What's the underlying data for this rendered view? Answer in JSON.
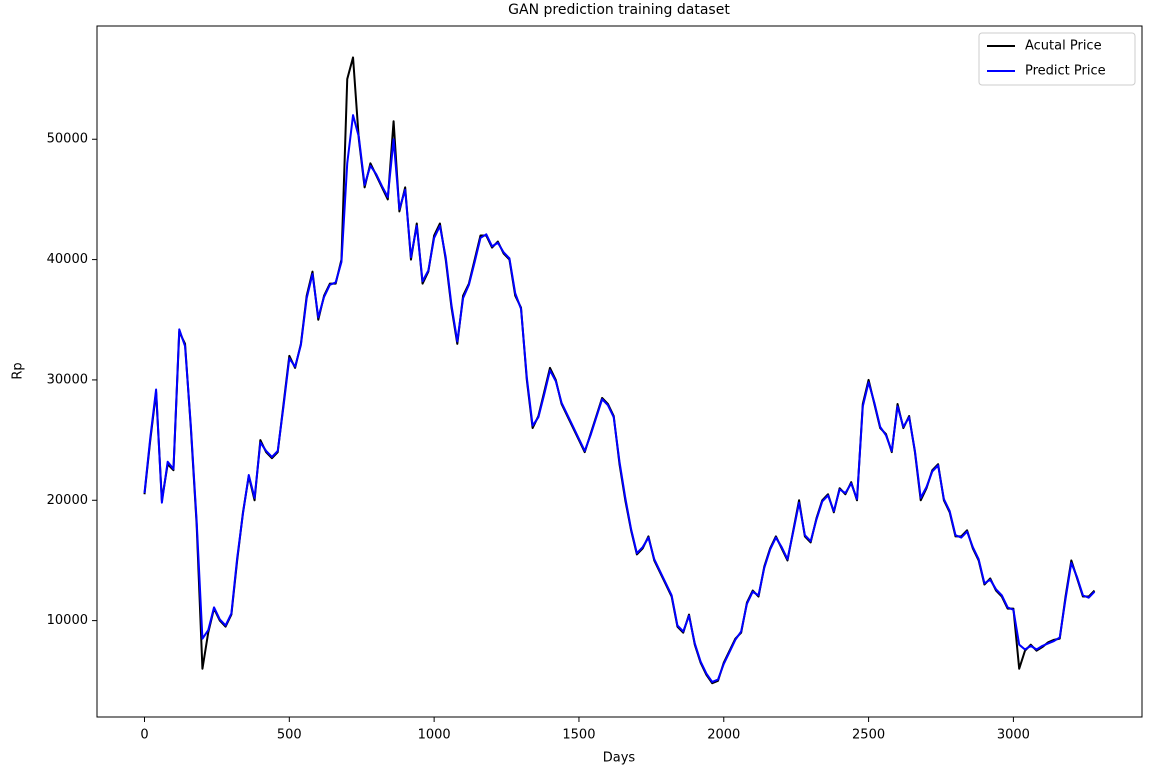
{
  "chart_data": {
    "type": "line",
    "title": "GAN prediction training dataset",
    "xlabel": "Days",
    "ylabel": "Rp",
    "x": [
      0,
      20,
      40,
      60,
      80,
      100,
      120,
      140,
      160,
      180,
      200,
      220,
      240,
      260,
      280,
      300,
      320,
      340,
      360,
      380,
      400,
      420,
      440,
      460,
      480,
      500,
      520,
      540,
      560,
      580,
      600,
      620,
      640,
      660,
      680,
      700,
      720,
      740,
      760,
      780,
      800,
      820,
      840,
      860,
      880,
      900,
      920,
      940,
      960,
      980,
      1000,
      1020,
      1040,
      1060,
      1080,
      1100,
      1120,
      1140,
      1160,
      1180,
      1200,
      1220,
      1240,
      1260,
      1280,
      1300,
      1320,
      1340,
      1360,
      1380,
      1400,
      1420,
      1440,
      1460,
      1480,
      1500,
      1520,
      1540,
      1560,
      1580,
      1600,
      1620,
      1640,
      1660,
      1680,
      1700,
      1720,
      1740,
      1760,
      1780,
      1800,
      1820,
      1840,
      1860,
      1880,
      1900,
      1920,
      1940,
      1960,
      1980,
      2000,
      2020,
      2040,
      2060,
      2080,
      2100,
      2120,
      2140,
      2160,
      2180,
      2200,
      2220,
      2240,
      2260,
      2280,
      2300,
      2320,
      2340,
      2360,
      2380,
      2400,
      2420,
      2440,
      2460,
      2480,
      2500,
      2520,
      2540,
      2560,
      2580,
      2600,
      2620,
      2640,
      2660,
      2680,
      2700,
      2720,
      2740,
      2760,
      2780,
      2800,
      2820,
      2840,
      2860,
      2880,
      2900,
      2920,
      2940,
      2960,
      2980,
      3000,
      3020,
      3040,
      3060,
      3080,
      3100,
      3120,
      3140,
      3160,
      3180,
      3200,
      3220,
      3240,
      3260,
      3280
    ],
    "series": [
      {
        "name": "Acutal Price",
        "color": "#000000",
        "values": [
          20500,
          25000,
          29000,
          20000,
          23000,
          22500,
          34000,
          33000,
          26000,
          18000,
          6000,
          9000,
          11000,
          10000,
          9500,
          10500,
          15000,
          19000,
          22000,
          20000,
          25000,
          24000,
          23500,
          24000,
          28000,
          32000,
          31000,
          33000,
          37000,
          39000,
          35000,
          37000,
          38000,
          38000,
          40000,
          55000,
          56800,
          50000,
          46000,
          48000,
          47000,
          46000,
          45000,
          51500,
          44000,
          46000,
          40000,
          43000,
          38000,
          39000,
          42000,
          43000,
          40000,
          36000,
          33000,
          37000,
          38000,
          40000,
          42000,
          42000,
          41000,
          41500,
          40500,
          40000,
          37000,
          36000,
          30000,
          26000,
          27000,
          29000,
          31000,
          30000,
          28000,
          27000,
          26000,
          25000,
          24000,
          25500,
          27000,
          28500,
          28000,
          27000,
          23000,
          20000,
          17500,
          15500,
          16000,
          17000,
          15000,
          14000,
          13000,
          12000,
          9500,
          9000,
          10500,
          8000,
          6500,
          5500,
          4800,
          5000,
          6500,
          7500,
          8500,
          9000,
          11500,
          12500,
          12000,
          14500,
          16000,
          17000,
          16000,
          15000,
          17500,
          20000,
          17000,
          16500,
          18500,
          20000,
          20500,
          19000,
          21000,
          20500,
          21500,
          20000,
          28000,
          30000,
          28000,
          26000,
          25500,
          24000,
          28000,
          26000,
          27000,
          24000,
          20000,
          21000,
          22500,
          23000,
          20000,
          19000,
          17000,
          17000,
          17500,
          16000,
          15000,
          13000,
          13500,
          12500,
          12000,
          11000,
          11000,
          6000,
          7500,
          8000,
          7500,
          7800,
          8200,
          8400,
          8500,
          12000,
          15000,
          13500,
          12000,
          12000,
          12500
        ]
      },
      {
        "name": "Predict Price",
        "color": "#0000ff",
        "values": [
          20600,
          25200,
          29200,
          19800,
          23200,
          22600,
          34200,
          32800,
          26200,
          18300,
          8500,
          9200,
          11100,
          10100,
          9600,
          10600,
          15200,
          18900,
          22100,
          20200,
          24800,
          24100,
          23600,
          24100,
          27800,
          31800,
          31100,
          32900,
          36800,
          38800,
          35200,
          36900,
          37900,
          38100,
          39800,
          48000,
          52000,
          50200,
          46200,
          47800,
          47100,
          46100,
          45200,
          50000,
          44200,
          45800,
          40200,
          42800,
          38200,
          39100,
          41800,
          42800,
          40200,
          36200,
          33200,
          36800,
          37900,
          39800,
          41800,
          42100,
          41100,
          41400,
          40600,
          40100,
          37200,
          35900,
          30200,
          26200,
          26900,
          28800,
          30800,
          29900,
          28100,
          27100,
          26100,
          25100,
          24100,
          25400,
          26900,
          28400,
          27900,
          26900,
          23200,
          20200,
          17600,
          15600,
          16100,
          16900,
          15100,
          14100,
          13100,
          12100,
          9600,
          9100,
          10400,
          8100,
          6600,
          5600,
          4900,
          5100,
          6400,
          7400,
          8400,
          9100,
          11400,
          12400,
          12100,
          14400,
          15900,
          16900,
          16100,
          15100,
          17400,
          19800,
          17100,
          16600,
          18400,
          19900,
          20400,
          19100,
          20900,
          20600,
          21400,
          20100,
          27800,
          29800,
          28100,
          26100,
          25400,
          24100,
          27800,
          26100,
          26900,
          24100,
          20200,
          21100,
          22400,
          22900,
          20100,
          19100,
          17100,
          16900,
          17400,
          16100,
          15100,
          13100,
          13400,
          12600,
          12100,
          11100,
          10900,
          8000,
          7600,
          7900,
          7600,
          7900,
          8100,
          8300,
          8600,
          11800,
          14800,
          13600,
          12100,
          11900,
          12400
        ]
      }
    ],
    "xlim": [
      -164,
      3444
    ],
    "ylim": [
      1990,
      59410
    ],
    "xticks": [
      0,
      500,
      1000,
      1500,
      2000,
      2500,
      3000
    ],
    "yticks": [
      10000,
      20000,
      30000,
      40000,
      50000
    ],
    "legend": "upper right",
    "grid": false
  }
}
